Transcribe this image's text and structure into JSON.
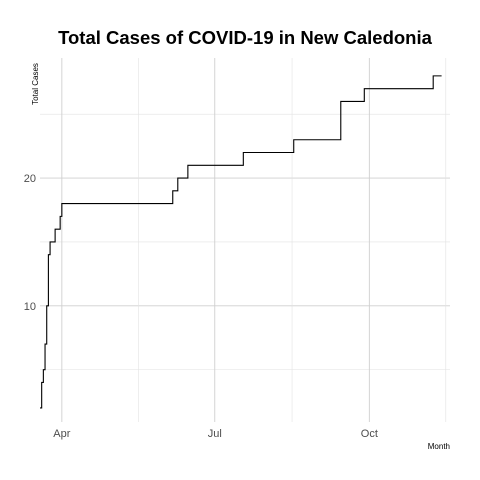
{
  "chart_data": {
    "type": "line",
    "title": "Total Cases of COVID-19 in New Caledonia",
    "xlabel": "Month",
    "ylabel": "Total Cases",
    "x_ticks": [
      {
        "date": "2020-04-01",
        "label": "Apr"
      },
      {
        "date": "2020-07-01",
        "label": "Jul"
      },
      {
        "date": "2020-10-01",
        "label": "Oct"
      }
    ],
    "y_ticks": [
      10,
      20
    ],
    "xlim": [
      "2020-03-19",
      "2020-11-18"
    ],
    "ylim": [
      0.9,
      29.4
    ],
    "grid": true,
    "legend": "none",
    "series": [
      {
        "name": "Total Cases",
        "color": "#000000",
        "points": [
          {
            "date": "2020-03-19",
            "value": 2
          },
          {
            "date": "2020-03-20",
            "value": 4
          },
          {
            "date": "2020-03-21",
            "value": 5
          },
          {
            "date": "2020-03-22",
            "value": 7
          },
          {
            "date": "2020-03-23",
            "value": 10
          },
          {
            "date": "2020-03-24",
            "value": 14
          },
          {
            "date": "2020-03-25",
            "value": 15
          },
          {
            "date": "2020-03-28",
            "value": 16
          },
          {
            "date": "2020-03-31",
            "value": 17
          },
          {
            "date": "2020-04-01",
            "value": 18
          },
          {
            "date": "2020-06-06",
            "value": 19
          },
          {
            "date": "2020-06-09",
            "value": 20
          },
          {
            "date": "2020-06-15",
            "value": 21
          },
          {
            "date": "2020-07-18",
            "value": 22
          },
          {
            "date": "2020-08-17",
            "value": 23
          },
          {
            "date": "2020-09-14",
            "value": 26
          },
          {
            "date": "2020-09-28",
            "value": 27
          },
          {
            "date": "2020-11-08",
            "value": 28
          },
          {
            "date": "2020-11-13",
            "value": 28
          }
        ]
      }
    ]
  }
}
